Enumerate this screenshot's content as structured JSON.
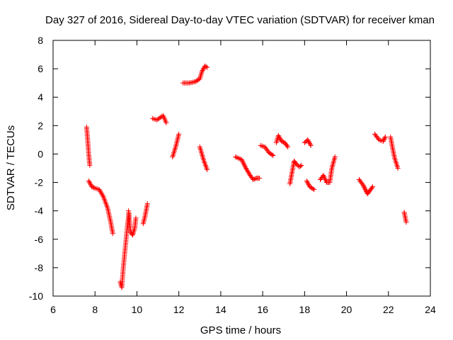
{
  "chart_data": {
    "type": "scatter",
    "title": "Day 327 of 2016, Sidereal Day-to-day VTEC variation (SDTVAR) for receiver kman",
    "xlabel": "GPS time / hours",
    "ylabel": "SDTVAR / TECUs",
    "xlim": [
      6,
      24
    ],
    "ylim": [
      -10,
      8
    ],
    "xticks": [
      6,
      8,
      10,
      12,
      14,
      16,
      18,
      20,
      22,
      24
    ],
    "yticks": [
      -10,
      -8,
      -6,
      -4,
      -2,
      0,
      2,
      4,
      6,
      8
    ],
    "marker": "+",
    "marker_color": "#ff0000",
    "grid": false,
    "segments": [
      [
        [
          7.6,
          1.9
        ],
        [
          7.65,
          1.0
        ],
        [
          7.7,
          0.0
        ],
        [
          7.75,
          -0.8
        ]
      ],
      [
        [
          7.7,
          -1.9
        ],
        [
          7.85,
          -2.3
        ],
        [
          8.0,
          -2.4
        ],
        [
          8.2,
          -2.5
        ],
        [
          8.4,
          -3.0
        ],
        [
          8.6,
          -3.8
        ],
        [
          8.75,
          -4.8
        ],
        [
          8.85,
          -5.6
        ]
      ],
      [
        [
          9.2,
          -9.0
        ],
        [
          9.28,
          -9.4
        ],
        [
          9.35,
          -8.0
        ],
        [
          9.45,
          -6.5
        ],
        [
          9.55,
          -5.0
        ],
        [
          9.62,
          -4.2
        ]
      ],
      [
        [
          9.6,
          -4.0
        ],
        [
          9.7,
          -5.5
        ],
        [
          9.8,
          -5.7
        ],
        [
          9.9,
          -5.2
        ],
        [
          9.95,
          -4.5
        ]
      ],
      [
        [
          10.3,
          -4.9
        ],
        [
          10.4,
          -4.3
        ],
        [
          10.5,
          -3.5
        ]
      ],
      [
        [
          10.75,
          2.5
        ],
        [
          10.95,
          2.4
        ],
        [
          11.15,
          2.6
        ],
        [
          11.25,
          2.7
        ],
        [
          11.4,
          2.2
        ]
      ],
      [
        [
          11.7,
          -0.2
        ],
        [
          11.85,
          0.5
        ],
        [
          12.0,
          1.4
        ]
      ],
      [
        [
          12.2,
          5.0
        ],
        [
          12.5,
          5.0
        ],
        [
          12.8,
          5.1
        ],
        [
          13.0,
          5.3
        ],
        [
          13.1,
          5.8
        ],
        [
          13.25,
          6.2
        ],
        [
          13.35,
          6.1
        ]
      ],
      [
        [
          13.0,
          0.5
        ],
        [
          13.2,
          -0.5
        ],
        [
          13.35,
          -1.1
        ]
      ],
      [
        [
          14.7,
          -0.2
        ],
        [
          15.0,
          -0.4
        ],
        [
          15.2,
          -1.0
        ],
        [
          15.4,
          -1.5
        ],
        [
          15.55,
          -1.8
        ],
        [
          15.7,
          -1.7
        ],
        [
          15.85,
          -1.7
        ]
      ],
      [
        [
          15.9,
          0.6
        ],
        [
          16.1,
          0.5
        ],
        [
          16.3,
          0.1
        ],
        [
          16.5,
          -0.1
        ]
      ],
      [
        [
          16.65,
          0.8
        ],
        [
          16.75,
          1.3
        ],
        [
          16.9,
          0.9
        ],
        [
          17.05,
          0.8
        ],
        [
          17.2,
          0.5
        ]
      ],
      [
        [
          17.3,
          -2.1
        ],
        [
          17.4,
          -1.3
        ],
        [
          17.5,
          -0.5
        ],
        [
          17.6,
          -0.7
        ],
        [
          17.75,
          -0.9
        ],
        [
          17.85,
          -0.8
        ]
      ],
      [
        [
          18.0,
          0.8
        ],
        [
          18.15,
          1.0
        ],
        [
          18.3,
          0.6
        ]
      ],
      [
        [
          18.1,
          -1.9
        ],
        [
          18.25,
          -2.3
        ],
        [
          18.45,
          -2.5
        ]
      ],
      [
        [
          18.75,
          -1.8
        ],
        [
          18.9,
          -1.5
        ],
        [
          19.05,
          -2.0
        ],
        [
          19.2,
          -2.0
        ],
        [
          19.3,
          -1.0
        ],
        [
          19.45,
          -0.2
        ]
      ],
      [
        [
          20.6,
          -1.8
        ],
        [
          20.8,
          -2.2
        ],
        [
          20.9,
          -2.5
        ],
        [
          21.0,
          -2.8
        ],
        [
          21.1,
          -2.6
        ],
        [
          21.25,
          -2.3
        ]
      ],
      [
        [
          21.35,
          1.4
        ],
        [
          21.55,
          1.0
        ],
        [
          21.75,
          0.9
        ],
        [
          21.85,
          1.2
        ]
      ],
      [
        [
          22.1,
          1.2
        ],
        [
          22.2,
          0.4
        ],
        [
          22.3,
          -0.3
        ],
        [
          22.45,
          -1.0
        ]
      ],
      [
        [
          22.75,
          -4.1
        ],
        [
          22.85,
          -4.8
        ]
      ]
    ]
  }
}
